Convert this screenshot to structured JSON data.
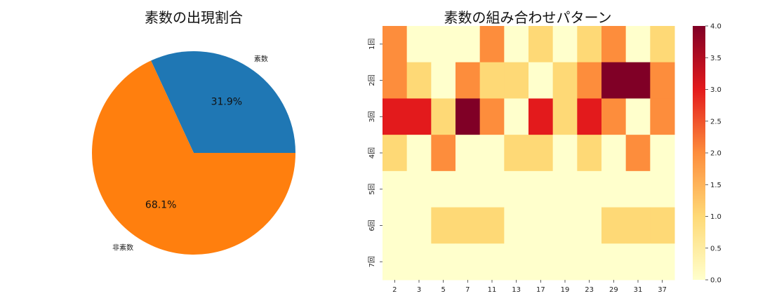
{
  "chart_data": [
    {
      "type": "pie",
      "title": "素数の出現割合",
      "labels": [
        "素数",
        "非素数"
      ],
      "values": [
        31.9,
        68.1
      ],
      "pct_labels": [
        "31.9%",
        "68.1%"
      ],
      "colors": [
        "#1f77b4",
        "#ff7f0e"
      ]
    },
    {
      "type": "heatmap",
      "title": "素数の組み合わせパターン",
      "x_labels": [
        "2",
        "3",
        "5",
        "7",
        "11",
        "13",
        "17",
        "19",
        "23",
        "29",
        "31",
        "37"
      ],
      "y_labels": [
        "1回",
        "2回",
        "3回",
        "4回",
        "5回",
        "6回",
        "7回"
      ],
      "values": [
        [
          2,
          0,
          0,
          0,
          2,
          0,
          1,
          0,
          1,
          2,
          0,
          1
        ],
        [
          2,
          1,
          0,
          2,
          1,
          1,
          0,
          1,
          2,
          4,
          4,
          2
        ],
        [
          3,
          3,
          1,
          4,
          2,
          0,
          3,
          1,
          3,
          2,
          0,
          2
        ],
        [
          1,
          0,
          2,
          0,
          0,
          1,
          1,
          0,
          1,
          0,
          2,
          0
        ],
        [
          0,
          0,
          0,
          0,
          0,
          0,
          0,
          0,
          0,
          0,
          0,
          0
        ],
        [
          0,
          0,
          1,
          1,
          1,
          0,
          0,
          0,
          0,
          1,
          1,
          1
        ],
        [
          0,
          0,
          0,
          0,
          0,
          0,
          0,
          0,
          0,
          0,
          0,
          0
        ]
      ],
      "colorbar": {
        "range": [
          0,
          4
        ],
        "ticks": [
          "0.0",
          "0.5",
          "1.0",
          "1.5",
          "2.0",
          "2.5",
          "3.0",
          "3.5",
          "4.0"
        ],
        "colormap": "YlOrRd",
        "stops": [
          "#ffffcc",
          "#fed976",
          "#fd8d3c",
          "#e31a1c",
          "#800026"
        ]
      }
    }
  ]
}
